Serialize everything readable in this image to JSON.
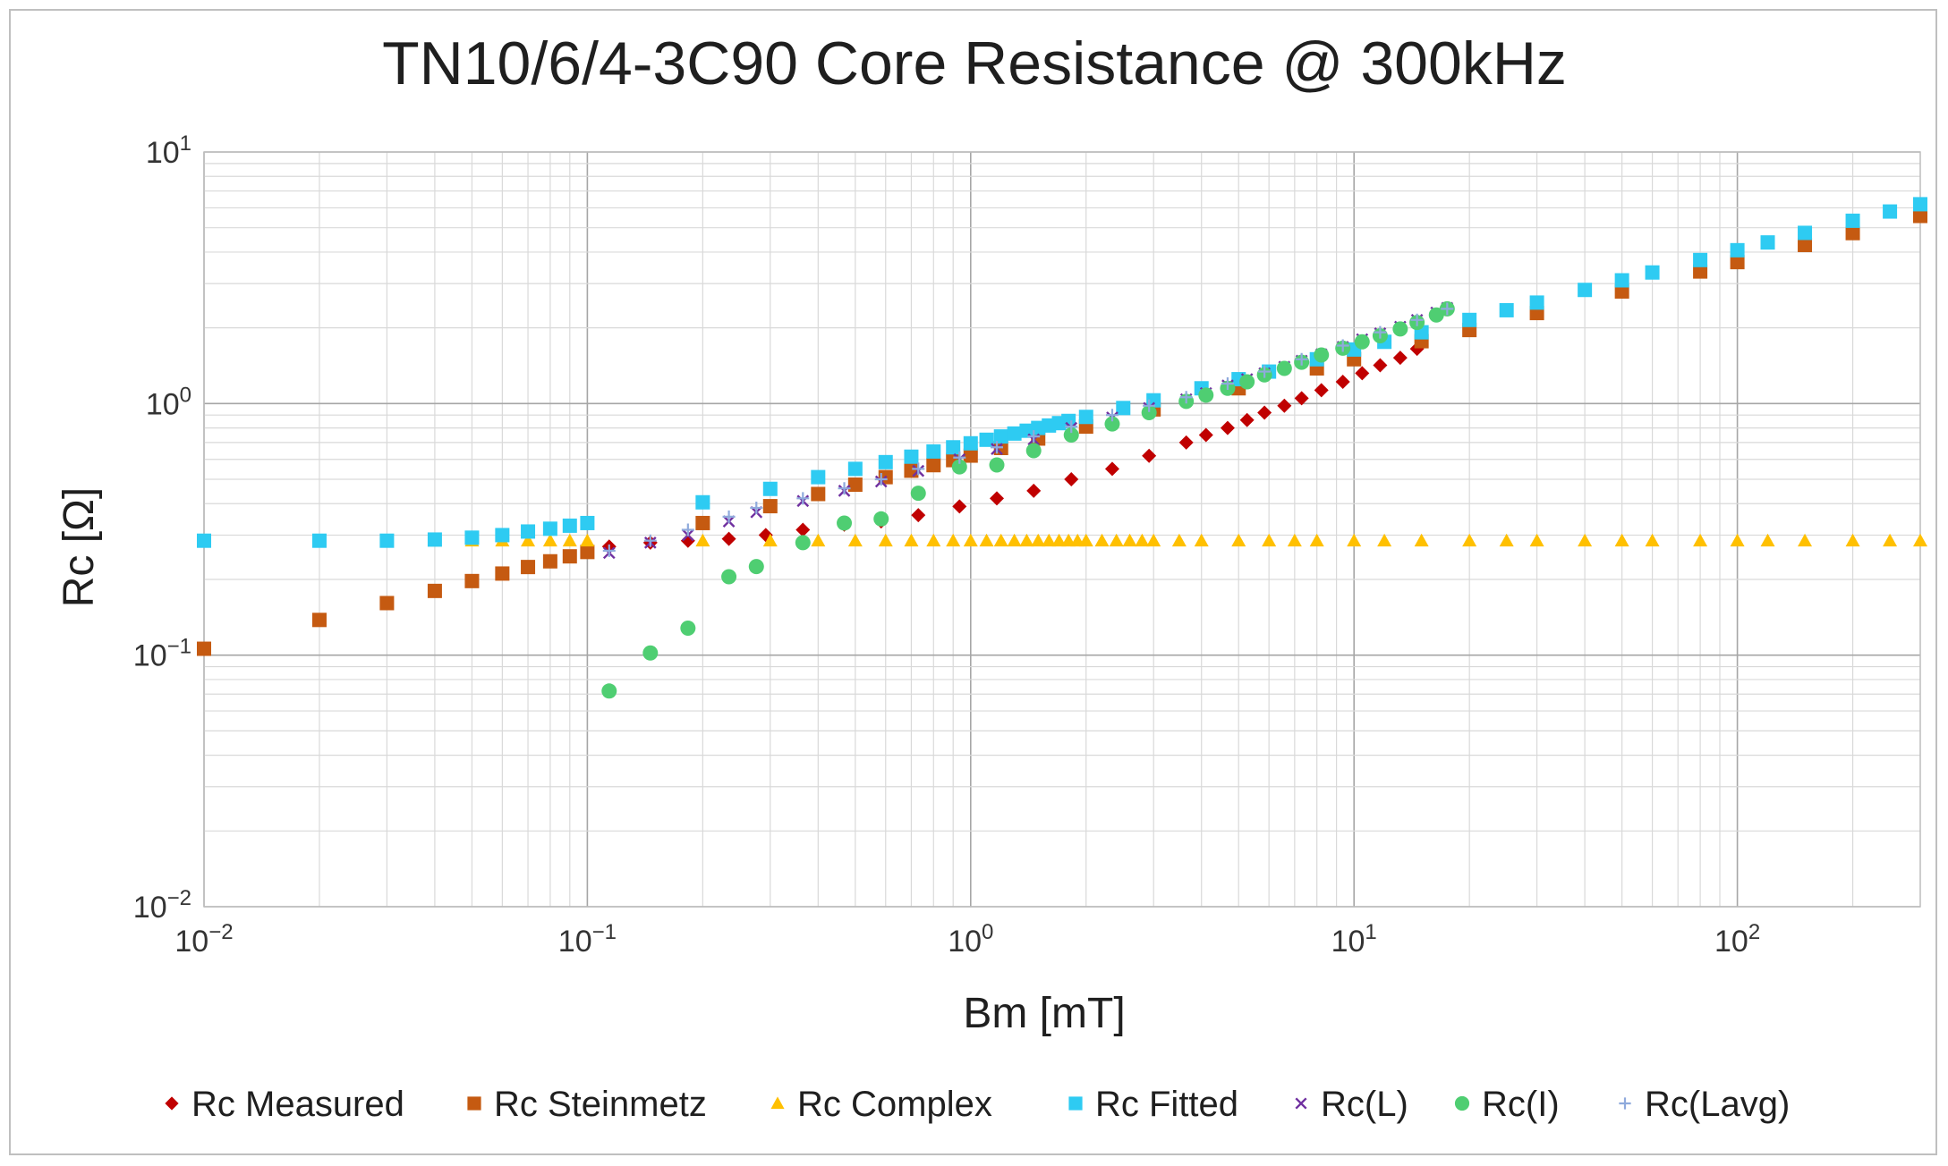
{
  "chart_data": {
    "type": "scatter",
    "title": "TN10/6/4-3C90 Core Resistance @ 300kHz",
    "xlabel": "Bm [mT]",
    "ylabel": "Rc [Ω]",
    "x_scale": "log",
    "y_scale": "log",
    "xlim": [
      0.01,
      300
    ],
    "ylim": [
      0.01,
      10
    ],
    "x_tick_labels": [
      {
        "value": 0.01,
        "base": "10",
        "exp": "−2"
      },
      {
        "value": 0.1,
        "base": "10",
        "exp": "−1"
      },
      {
        "value": 1,
        "base": "10",
        "exp": "0"
      },
      {
        "value": 10,
        "base": "10",
        "exp": "1"
      },
      {
        "value": 100,
        "base": "10",
        "exp": "2"
      }
    ],
    "y_tick_labels": [
      {
        "value": 0.01,
        "base": "10",
        "exp": "−2"
      },
      {
        "value": 0.1,
        "base": "10",
        "exp": "−1"
      },
      {
        "value": 1,
        "base": "10",
        "exp": "0"
      },
      {
        "value": 10,
        "base": "10",
        "exp": "1"
      }
    ],
    "grid": "major and minor",
    "legend_position": "bottom",
    "series": [
      {
        "name": "Rc Measured",
        "marker": "diamond",
        "color": "#c00000",
        "x": [
          0.114,
          0.146,
          0.183,
          0.234,
          0.292,
          0.365,
          0.468,
          0.584,
          0.73,
          0.935,
          1.17,
          1.46,
          1.83,
          2.34,
          2.92,
          3.65,
          4.11,
          4.68,
          5.26,
          5.84,
          6.58,
          7.3,
          8.22,
          9.35,
          10.5,
          11.7,
          13.2,
          14.6
        ],
        "y": [
          0.27,
          0.28,
          0.285,
          0.29,
          0.3,
          0.315,
          0.33,
          0.34,
          0.36,
          0.39,
          0.42,
          0.45,
          0.5,
          0.55,
          0.62,
          0.7,
          0.75,
          0.8,
          0.86,
          0.92,
          0.98,
          1.05,
          1.13,
          1.22,
          1.32,
          1.42,
          1.52,
          1.65
        ]
      },
      {
        "name": "Rc Steinmetz",
        "marker": "square",
        "color": "#c55a11",
        "x": [
          0.01,
          0.02,
          0.03,
          0.04,
          0.05,
          0.06,
          0.07,
          0.08,
          0.09,
          0.1,
          0.2,
          0.3,
          0.4,
          0.5,
          0.6,
          0.7,
          0.8,
          0.9,
          1,
          1.2,
          1.5,
          2,
          3,
          5,
          8,
          10,
          15,
          20,
          30,
          50,
          80,
          100,
          150,
          200,
          300
        ],
        "y": [
          0.106,
          0.138,
          0.161,
          0.18,
          0.197,
          0.211,
          0.224,
          0.236,
          0.247,
          0.257,
          0.335,
          0.391,
          0.437,
          0.476,
          0.51,
          0.541,
          0.569,
          0.596,
          0.621,
          0.666,
          0.726,
          0.81,
          0.948,
          1.15,
          1.38,
          1.5,
          1.77,
          1.96,
          2.29,
          2.79,
          3.35,
          3.65,
          4.27,
          4.76,
          5.57
        ]
      },
      {
        "name": "Rc Complex",
        "marker": "triangle",
        "color": "#ffc000",
        "x": [
          0.04,
          0.05,
          0.06,
          0.07,
          0.08,
          0.09,
          0.1,
          0.2,
          0.3,
          0.4,
          0.5,
          0.6,
          0.7,
          0.8,
          0.9,
          1,
          1.1,
          1.2,
          1.3,
          1.4,
          1.5,
          1.6,
          1.7,
          1.8,
          1.9,
          2,
          2.2,
          2.4,
          2.6,
          2.8,
          3,
          3.5,
          4,
          5,
          6,
          7,
          8,
          10,
          12,
          15,
          20,
          25,
          30,
          40,
          50,
          60,
          80,
          100,
          120,
          150,
          200,
          250,
          300
        ],
        "y": [
          0.285,
          0.285,
          0.285,
          0.285,
          0.285,
          0.285,
          0.285,
          0.285,
          0.285,
          0.285,
          0.285,
          0.285,
          0.285,
          0.285,
          0.285,
          0.285,
          0.285,
          0.285,
          0.285,
          0.285,
          0.285,
          0.285,
          0.285,
          0.285,
          0.285,
          0.285,
          0.285,
          0.285,
          0.285,
          0.285,
          0.285,
          0.285,
          0.285,
          0.285,
          0.285,
          0.285,
          0.285,
          0.285,
          0.285,
          0.285,
          0.285,
          0.285,
          0.285,
          0.285,
          0.285,
          0.285,
          0.285,
          0.285,
          0.285,
          0.285,
          0.285,
          0.285,
          0.285
        ]
      },
      {
        "name": "Rc Fitted",
        "marker": "square",
        "color": "#2ecbf2",
        "x": [
          0.01,
          0.02,
          0.03,
          0.04,
          0.05,
          0.06,
          0.07,
          0.08,
          0.09,
          0.1,
          0.2,
          0.3,
          0.4,
          0.5,
          0.6,
          0.7,
          0.8,
          0.9,
          1,
          1.1,
          1.2,
          1.3,
          1.4,
          1.5,
          1.6,
          1.7,
          1.8,
          2,
          2.5,
          3,
          4,
          5,
          6,
          8,
          10,
          12,
          15,
          20,
          25,
          30,
          40,
          50,
          60,
          80,
          100,
          120,
          150,
          200,
          250,
          300
        ],
        "y": [
          0.285,
          0.285,
          0.285,
          0.288,
          0.293,
          0.3,
          0.31,
          0.318,
          0.327,
          0.335,
          0.405,
          0.458,
          0.51,
          0.55,
          0.585,
          0.615,
          0.645,
          0.67,
          0.695,
          0.718,
          0.74,
          0.76,
          0.78,
          0.8,
          0.818,
          0.836,
          0.853,
          0.885,
          0.96,
          1.03,
          1.15,
          1.25,
          1.34,
          1.5,
          1.64,
          1.76,
          1.92,
          2.15,
          2.35,
          2.52,
          2.83,
          3.09,
          3.32,
          3.72,
          4.07,
          4.37,
          4.77,
          5.33,
          5.8,
          6.2
        ]
      },
      {
        "name": "Rc(L)",
        "marker": "x",
        "color": "#7030a0",
        "x": [
          0.114,
          0.146,
          0.183,
          0.234,
          0.276,
          0.365,
          0.468,
          0.584,
          0.73,
          0.935,
          1.17,
          1.46,
          1.83,
          2.34,
          2.92,
          3.65,
          4.11,
          4.68,
          5.26,
          5.84,
          6.58,
          7.3,
          8.22,
          9.35,
          10.5,
          11.7,
          13.2,
          14.6,
          16.4,
          17.5
        ],
        "y": [
          0.255,
          0.28,
          0.3,
          0.34,
          0.37,
          0.41,
          0.45,
          0.49,
          0.54,
          0.6,
          0.66,
          0.72,
          0.8,
          0.88,
          0.96,
          1.04,
          1.1,
          1.18,
          1.25,
          1.32,
          1.4,
          1.48,
          1.57,
          1.68,
          1.8,
          1.9,
          2.02,
          2.15,
          2.3,
          2.4
        ]
      },
      {
        "name": "Rc(I)",
        "marker": "circle",
        "color": "#4fce72",
        "x": [
          0.114,
          0.146,
          0.183,
          0.234,
          0.276,
          0.365,
          0.468,
          0.584,
          0.73,
          0.935,
          1.17,
          1.46,
          1.83,
          2.34,
          2.92,
          3.65,
          4.11,
          4.68,
          5.26,
          5.84,
          6.58,
          7.3,
          8.22,
          9.35,
          10.5,
          11.7,
          13.2,
          14.6,
          16.4,
          17.5
        ],
        "y": [
          0.072,
          0.102,
          0.128,
          0.205,
          0.225,
          0.28,
          0.335,
          0.348,
          0.44,
          0.56,
          0.57,
          0.65,
          0.75,
          0.83,
          0.92,
          1.02,
          1.08,
          1.15,
          1.22,
          1.3,
          1.38,
          1.46,
          1.56,
          1.66,
          1.76,
          1.86,
          1.98,
          2.1,
          2.25,
          2.38
        ]
      },
      {
        "name": "Rc(Lavg)",
        "marker": "plus",
        "color": "#8faadc",
        "x": [
          0.114,
          0.146,
          0.183,
          0.234,
          0.276,
          0.365,
          0.468,
          0.584,
          0.73,
          0.935,
          1.17,
          1.46,
          1.83,
          2.34,
          2.92,
          3.65,
          4.68,
          5.84,
          7.3,
          9.35,
          11.7,
          14.6,
          17.5
        ],
        "y": [
          0.26,
          0.285,
          0.315,
          0.355,
          0.385,
          0.42,
          0.46,
          0.5,
          0.55,
          0.61,
          0.67,
          0.74,
          0.81,
          0.9,
          0.98,
          1.06,
          1.2,
          1.34,
          1.5,
          1.7,
          1.92,
          2.15,
          2.38
        ]
      }
    ]
  }
}
